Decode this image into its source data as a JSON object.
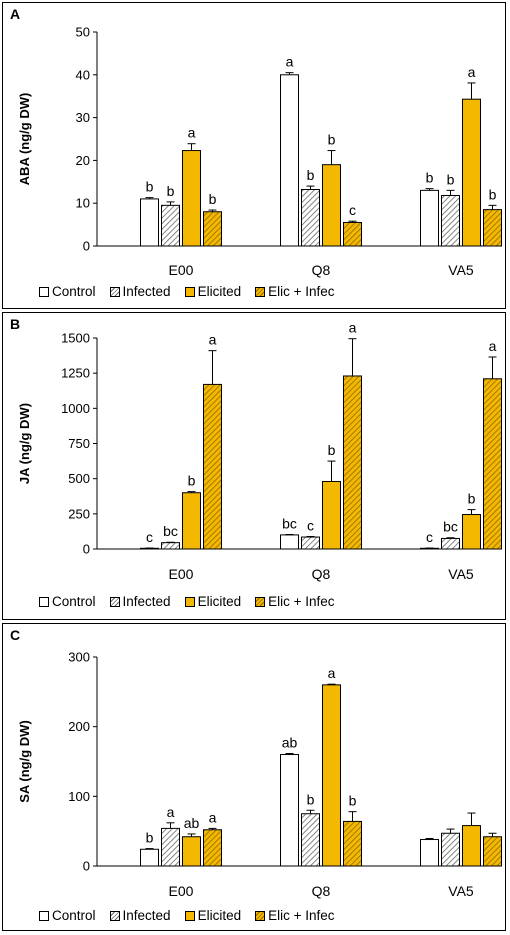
{
  "colors": {
    "control": "#ffffff",
    "infected": "#ffffff",
    "elicited": "#f5b800",
    "elic_infec": "#f5b800",
    "stroke": "#000000",
    "hatch": "#666666"
  },
  "chart_data": [
    {
      "panel": "A",
      "type": "bar",
      "ylabel": "ABA (ng/g DW)",
      "ylim": [
        0,
        50
      ],
      "yticks": [
        0,
        10,
        20,
        30,
        40,
        50
      ],
      "categories": [
        "E00",
        "Q8",
        "VA5"
      ],
      "series": [
        {
          "name": "Control",
          "values": [
            11.0,
            40.0,
            13.0
          ],
          "errors": [
            0.3,
            0.5,
            0.4
          ],
          "letters": [
            "b",
            "a",
            "b"
          ]
        },
        {
          "name": "Infected",
          "values": [
            9.5,
            13.2,
            11.8
          ],
          "errors": [
            0.8,
            0.8,
            1.2
          ],
          "letters": [
            "b",
            "b",
            "b"
          ]
        },
        {
          "name": "Elicited",
          "values": [
            22.3,
            19.0,
            34.3
          ],
          "errors": [
            1.6,
            3.3,
            3.8
          ],
          "letters": [
            "a",
            "b",
            "a"
          ]
        },
        {
          "name": "Elic + Infec",
          "values": [
            8.0,
            5.5,
            8.5
          ],
          "errors": [
            0.4,
            0.3,
            1.0
          ],
          "letters": [
            "b",
            "c",
            "b"
          ]
        }
      ]
    },
    {
      "panel": "B",
      "type": "bar",
      "ylabel": "JA (ng/g DW)",
      "ylim": [
        0,
        1500
      ],
      "yticks": [
        0,
        250,
        500,
        750,
        1000,
        1250,
        1500
      ],
      "categories": [
        "E00",
        "Q8",
        "VA5"
      ],
      "series": [
        {
          "name": "Control",
          "values": [
            5,
            100,
            5
          ],
          "errors": [
            2,
            3,
            2
          ],
          "letters": [
            "c",
            "bc",
            "c"
          ]
        },
        {
          "name": "Infected",
          "values": [
            45,
            85,
            75
          ],
          "errors": [
            3,
            4,
            5
          ],
          "letters": [
            "bc",
            "c",
            "bc"
          ]
        },
        {
          "name": "Elicited",
          "values": [
            400,
            480,
            245
          ],
          "errors": [
            8,
            145,
            35
          ],
          "letters": [
            "b",
            "b",
            "b"
          ]
        },
        {
          "name": "Elic + Infec",
          "values": [
            1170,
            1230,
            1210
          ],
          "errors": [
            240,
            265,
            155
          ],
          "letters": [
            "a",
            "a",
            "a"
          ]
        }
      ]
    },
    {
      "panel": "C",
      "type": "bar",
      "ylabel": "SA (ng/g DW)",
      "ylim": [
        0,
        300
      ],
      "yticks": [
        0,
        100,
        200,
        300
      ],
      "categories": [
        "E00",
        "Q8",
        "VA5"
      ],
      "series": [
        {
          "name": "Control",
          "values": [
            24,
            160,
            38
          ],
          "errors": [
            1,
            1.5,
            1.5
          ],
          "letters": [
            "b",
            "ab",
            ""
          ]
        },
        {
          "name": "Infected",
          "values": [
            54,
            75,
            47
          ],
          "errors": [
            8,
            5,
            6
          ],
          "letters": [
            "a",
            "b",
            ""
          ]
        },
        {
          "name": "Elicited",
          "values": [
            42,
            260,
            58
          ],
          "errors": [
            4,
            1,
            18
          ],
          "letters": [
            "ab",
            "a",
            ""
          ]
        },
        {
          "name": "Elic + Infec",
          "values": [
            52,
            64,
            42
          ],
          "errors": [
            2,
            14,
            5
          ],
          "letters": [
            "a",
            "b",
            ""
          ]
        }
      ]
    }
  ]
}
